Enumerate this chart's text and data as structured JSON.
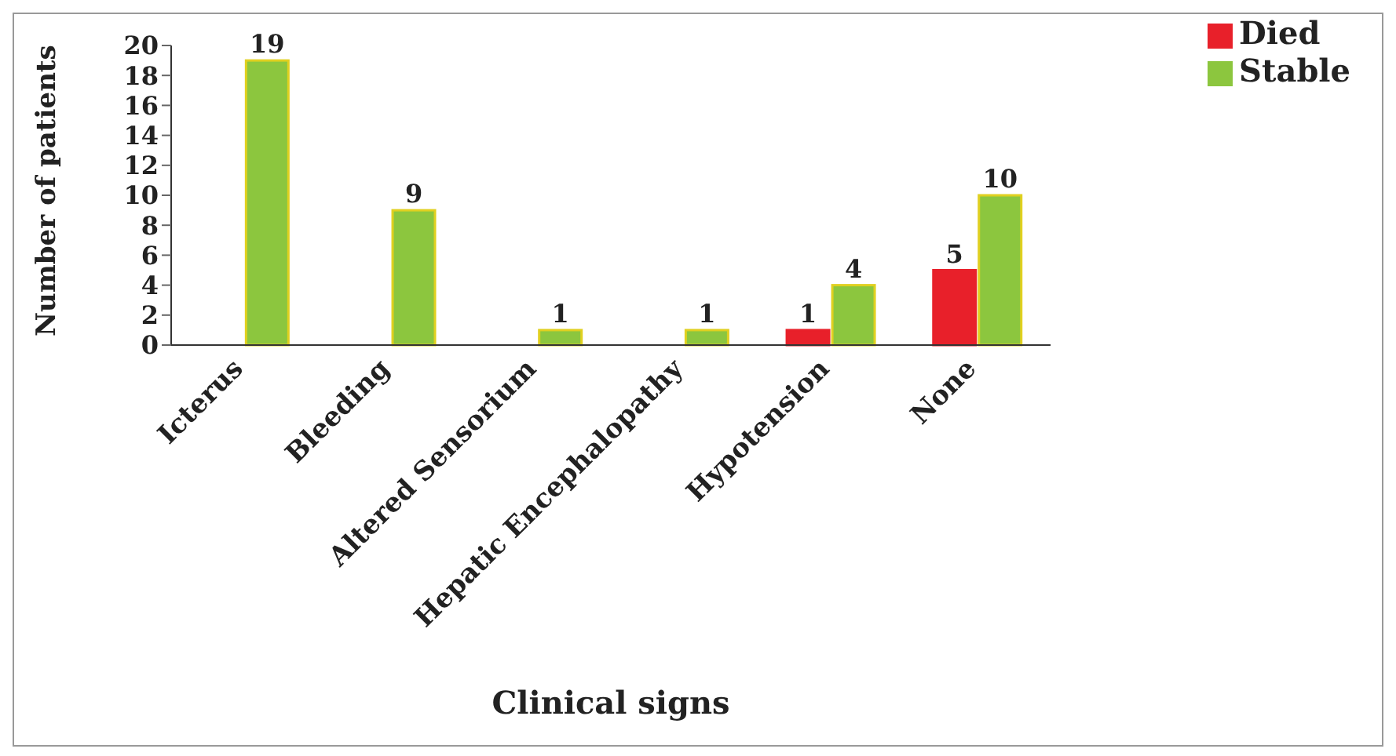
{
  "chart_data": {
    "type": "bar",
    "xlabel": "Clinical signs",
    "ylabel": "Number of patients",
    "categories": [
      "Icterus",
      "Bleeding",
      "Altered Sensorium",
      "Hepatic Encephalopathy",
      "Hypotension",
      "None"
    ],
    "series": [
      {
        "name": "Died",
        "color": "#e8202a",
        "values": [
          0,
          0,
          0,
          0,
          1,
          5
        ],
        "value_labels": [
          null,
          null,
          null,
          null,
          "1",
          "5"
        ]
      },
      {
        "name": "Stable",
        "color": "#8cc63e",
        "values": [
          19,
          9,
          1,
          1,
          4,
          10
        ],
        "value_labels": [
          "19",
          "9",
          "1",
          "1",
          "4",
          "10"
        ]
      }
    ],
    "ylim": [
      0,
      20
    ],
    "yticks": [
      0,
      2,
      4,
      6,
      8,
      10,
      12,
      14,
      16,
      18,
      20
    ],
    "grid": false,
    "legend": "top right"
  }
}
